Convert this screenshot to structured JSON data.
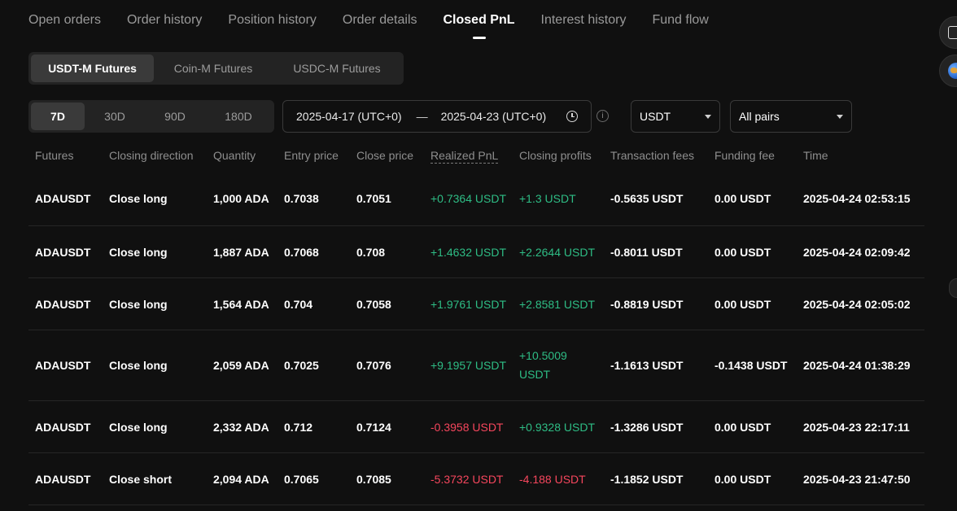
{
  "tabs": [
    "Open orders",
    "Order history",
    "Position history",
    "Order details",
    "Closed PnL",
    "Interest history",
    "Fund flow"
  ],
  "active_tab": "Closed PnL",
  "futures_types": [
    "USDT-M Futures",
    "Coin-M Futures",
    "USDC-M Futures"
  ],
  "active_futures_type": "USDT-M Futures",
  "periods": [
    "7D",
    "30D",
    "90D",
    "180D"
  ],
  "active_period": "7D",
  "date_range": {
    "start": "2025-04-17 (UTC+0)",
    "separator": "—",
    "end": "2025-04-23 (UTC+0)"
  },
  "currency_select": "USDT",
  "pairs_select": "All pairs",
  "info_glyph": "i",
  "colors": {
    "positive": "#2ebd85",
    "negative": "#f6465d",
    "background": "#101010"
  },
  "columns": [
    "Futures",
    "Closing direction",
    "Quantity",
    "Entry price",
    "Close price",
    "Realized PnL",
    "Closing profits",
    "Transaction fees",
    "Funding fee",
    "Time"
  ],
  "rows": [
    {
      "futures": "ADAUSDT",
      "direction": "Close long",
      "quantity": "1,000 ADA",
      "entry": "0.7038",
      "close": "0.7051",
      "realized_pnl": "+0.7364 USDT",
      "realized_sign": "pos",
      "closing_profits": "+1.3 USDT",
      "profits_sign": "pos",
      "fees": "-0.5635 USDT",
      "funding": "0.00 USDT",
      "time": "2025-04-24 02:53:15"
    },
    {
      "futures": "ADAUSDT",
      "direction": "Close long",
      "quantity": "1,887 ADA",
      "entry": "0.7068",
      "close": "0.708",
      "realized_pnl": "+1.4632 USDT",
      "realized_sign": "pos",
      "closing_profits": "+2.2644 USDT",
      "profits_sign": "pos",
      "fees": "-0.8011 USDT",
      "funding": "0.00 USDT",
      "time": "2025-04-24 02:09:42"
    },
    {
      "futures": "ADAUSDT",
      "direction": "Close long",
      "quantity": "1,564 ADA",
      "entry": "0.704",
      "close": "0.7058",
      "realized_pnl": "+1.9761 USDT",
      "realized_sign": "pos",
      "closing_profits": "+2.8581 USDT",
      "profits_sign": "pos",
      "fees": "-0.8819 USDT",
      "funding": "0.00 USDT",
      "time": "2025-04-24 02:05:02"
    },
    {
      "futures": "ADAUSDT",
      "direction": "Close long",
      "quantity": "2,059 ADA",
      "entry": "0.7025",
      "close": "0.7076",
      "realized_pnl": "+9.1957 USDT",
      "realized_sign": "pos",
      "closing_profits": "+10.5009 USDT",
      "profits_sign": "pos",
      "fees": "-1.1613 USDT",
      "funding": "-0.1438 USDT",
      "time": "2025-04-24 01:38:29"
    },
    {
      "futures": "ADAUSDT",
      "direction": "Close long",
      "quantity": "2,332 ADA",
      "entry": "0.712",
      "close": "0.7124",
      "realized_pnl": "-0.3958 USDT",
      "realized_sign": "neg",
      "closing_profits": "+0.9328 USDT",
      "profits_sign": "pos",
      "fees": "-1.3286 USDT",
      "funding": "0.00 USDT",
      "time": "2025-04-23 22:17:11"
    },
    {
      "futures": "ADAUSDT",
      "direction": "Close short",
      "quantity": "2,094 ADA",
      "entry": "0.7065",
      "close": "0.7085",
      "realized_pnl": "-5.3732 USDT",
      "realized_sign": "neg",
      "closing_profits": "-4.188 USDT",
      "profits_sign": "neg",
      "fees": "-1.1852 USDT",
      "funding": "0.00 USDT",
      "time": "2025-04-23 21:47:50"
    }
  ],
  "side_icons": [
    "book-icon",
    "globe-icon"
  ]
}
